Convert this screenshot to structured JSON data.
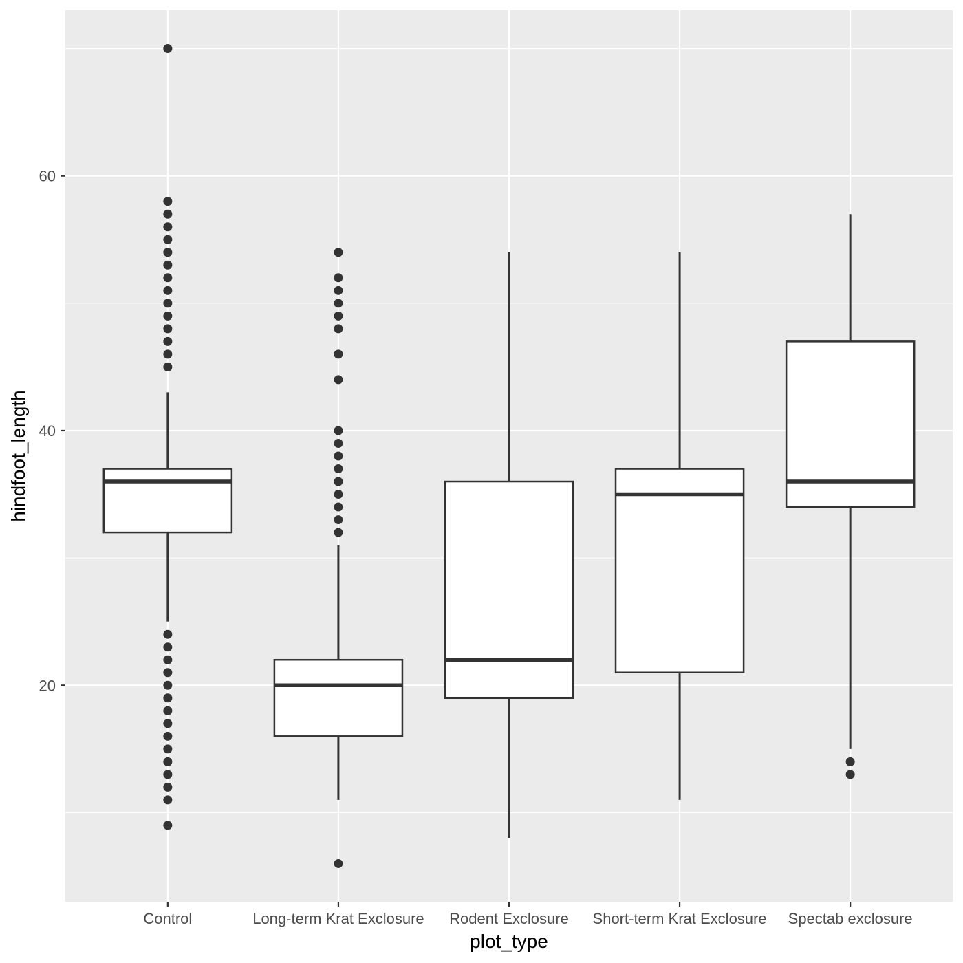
{
  "chart_data": {
    "type": "box",
    "xlabel": "plot_type",
    "ylabel": "hindfoot_length",
    "ylim": [
      3,
      73
    ],
    "y_ticks": [
      20,
      40,
      60
    ],
    "y_tick_labels": [
      "20",
      "40",
      "60"
    ],
    "y_minor_ticks": [
      10,
      30,
      50,
      70
    ],
    "grid": true,
    "colors": {
      "panel": "#ebebeb",
      "grid": "#ffffff",
      "box_fill": "#ffffff",
      "box_stroke": "#333333",
      "tick_text": "#4d4d4d",
      "axis_title": "#000000"
    },
    "categories": [
      "Control",
      "Long-term Krat Exclosure",
      "Rodent Exclosure",
      "Short-term Krat Exclosure",
      "Spectab exclosure"
    ],
    "boxes": [
      {
        "category": "Control",
        "whisker_low": 25,
        "q1": 32,
        "median": 36,
        "q3": 37,
        "whisker_high": 43,
        "outliers": [
          70,
          58,
          57,
          56,
          55,
          54,
          53,
          52,
          51,
          50,
          49,
          48,
          47,
          46,
          45,
          24,
          23,
          22,
          21,
          20,
          19,
          18,
          17,
          16,
          15,
          14,
          13,
          12,
          11,
          9
        ]
      },
      {
        "category": "Long-term Krat Exclosure",
        "whisker_low": 11,
        "q1": 16,
        "median": 20,
        "q3": 22,
        "whisker_high": 31,
        "outliers": [
          54,
          52,
          51,
          50,
          49,
          48,
          46,
          44,
          40,
          39,
          38,
          37,
          36,
          35,
          34,
          33,
          32,
          6
        ]
      },
      {
        "category": "Rodent Exclosure",
        "whisker_low": 8,
        "q1": 19,
        "median": 22,
        "q3": 36,
        "whisker_high": 54,
        "outliers": []
      },
      {
        "category": "Short-term Krat Exclosure",
        "whisker_low": 11,
        "q1": 21,
        "median": 35,
        "q3": 37,
        "whisker_high": 54,
        "outliers": []
      },
      {
        "category": "Spectab exclosure",
        "whisker_low": 15,
        "q1": 34,
        "median": 36,
        "q3": 47,
        "whisker_high": 57,
        "outliers": [
          14,
          13
        ]
      }
    ]
  }
}
